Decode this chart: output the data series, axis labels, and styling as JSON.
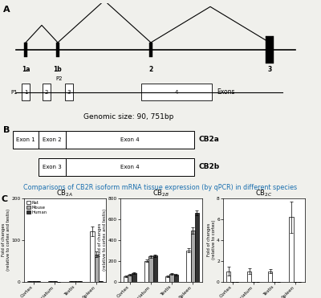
{
  "genomic_size_text": "Genomic size: 90, 751bp",
  "comparison_title": "Comparisons of CB2R isoform mRNA tissue expression (by qPCR) in different species",
  "comparison_title_color": "#1a6faf",
  "subplot_titles": [
    "CB$_{2A}$",
    "CB$_{2B}$",
    "CB$_{2C}$"
  ],
  "categories": [
    "Cortex",
    "Striatum",
    "Testis",
    "Spleen"
  ],
  "species": [
    "Rat",
    "Mouse",
    "Human"
  ],
  "bar_colors": [
    "white",
    "#aaaaaa",
    "#333333"
  ],
  "ylabel_2A": "Fold of changes\n(relative to cortex and testis)",
  "ylabel_2B": "Fold of changes\n(relative to cortex and testis)",
  "ylabel_2C": "Fold of changes\n(relative to cortex)",
  "ylim_2A": [
    0,
    200
  ],
  "ylim_2B": [
    0,
    800
  ],
  "ylim_2C": [
    0,
    8
  ],
  "yticks_2A": [
    0,
    100,
    200
  ],
  "yticks_2B": [
    0,
    200,
    400,
    600,
    800
  ],
  "yticks_2C": [
    0,
    2,
    4,
    6,
    8
  ],
  "data_2A": {
    "Cortex": {
      "Rat": 1.0,
      "Mouse": 1.0,
      "Human": 1.0
    },
    "Striatum": {
      "Rat": 0.5,
      "Mouse": 0.7,
      "Human": 0.0
    },
    "Testis": {
      "Rat": 1.0,
      "Mouse": 1.1,
      "Human": 1.8
    },
    "Spleen": {
      "Rat": 120.0,
      "Mouse": 65.0,
      "Human": 1.0
    }
  },
  "data_2B": {
    "Cortex": {
      "Rat": 50.0,
      "Mouse": 65.0,
      "Human": 80.0
    },
    "Striatum": {
      "Rat": 200.0,
      "Mouse": 240.0,
      "Human": 250.0
    },
    "Testis": {
      "Rat": 50.0,
      "Mouse": 75.0,
      "Human": 65.0
    },
    "Spleen": {
      "Rat": 300.0,
      "Mouse": 490.0,
      "Human": 660.0
    }
  },
  "data_2C": {
    "Cortex": {
      "Rat": 1.0,
      "Mouse": 0.0,
      "Human": 0.0
    },
    "Striatum": {
      "Rat": 1.0,
      "Mouse": 0.0,
      "Human": 0.0
    },
    "Testis": {
      "Rat": 1.0,
      "Mouse": 0.0,
      "Human": 0.0
    },
    "Spleen": {
      "Rat": 6.2,
      "Mouse": 0.0,
      "Human": 0.0
    }
  },
  "errors_2A": {
    "Cortex": {
      "Rat": 0.15,
      "Mouse": 0.1,
      "Human": 0.1
    },
    "Striatum": {
      "Rat": 0.1,
      "Mouse": 0.1,
      "Human": 0.0
    },
    "Testis": {
      "Rat": 0.2,
      "Mouse": 0.15,
      "Human": 0.2
    },
    "Spleen": {
      "Rat": 12.0,
      "Mouse": 7.0,
      "Human": 0.15
    }
  },
  "errors_2B": {
    "Cortex": {
      "Rat": 8.0,
      "Mouse": 7.0,
      "Human": 9.0
    },
    "Striatum": {
      "Rat": 12.0,
      "Mouse": 10.0,
      "Human": 12.0
    },
    "Testis": {
      "Rat": 7.0,
      "Mouse": 9.0,
      "Human": 8.0
    },
    "Spleen": {
      "Rat": 18.0,
      "Mouse": 28.0,
      "Human": 22.0
    }
  },
  "errors_2C": {
    "Cortex": {
      "Rat": 0.4,
      "Mouse": 0.0,
      "Human": 0.0
    },
    "Striatum": {
      "Rat": 0.25,
      "Mouse": 0.0,
      "Human": 0.0
    },
    "Testis": {
      "Rat": 0.2,
      "Mouse": 0.0,
      "Human": 0.0
    },
    "Spleen": {
      "Rat": 1.5,
      "Mouse": 0.0,
      "Human": 0.0
    }
  },
  "background_color": "#f0f0ec"
}
